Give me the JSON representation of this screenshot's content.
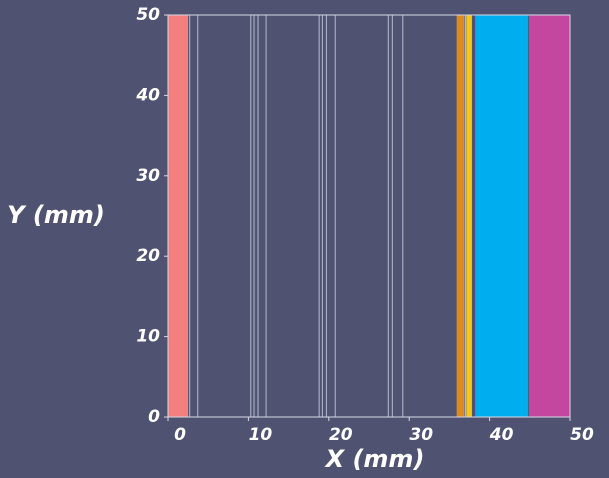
{
  "chart_data": {
    "type": "region",
    "x_label": "X (mm)",
    "y_label": "Y (mm)",
    "xlim": [
      0,
      50
    ],
    "ylim": [
      0,
      50
    ],
    "xticks": [
      0,
      10,
      20,
      30,
      40,
      50
    ],
    "yticks": [
      0,
      10,
      20,
      30,
      40,
      50
    ],
    "regions": [
      {
        "color": "#f47f7f",
        "x0": 0,
        "x1": 2.5
      },
      {
        "color": "#e08a1e",
        "x0": 35.9,
        "x1": 36.7
      },
      {
        "color": "#f5c518",
        "x0": 37.1,
        "x1": 37.8
      },
      {
        "color": "#00aeef",
        "x0": 38.2,
        "x1": 44.8
      },
      {
        "color": "#c4479f",
        "x0": 44.9,
        "x1": 50
      }
    ],
    "line_color": "#b8bccf",
    "lines": [
      2.7,
      3.7,
      10.3,
      10.7,
      11.2,
      12.2,
      18.8,
      19.2,
      19.7,
      20.8,
      27.4,
      27.9,
      29.2,
      36.8,
      37.0
    ]
  }
}
